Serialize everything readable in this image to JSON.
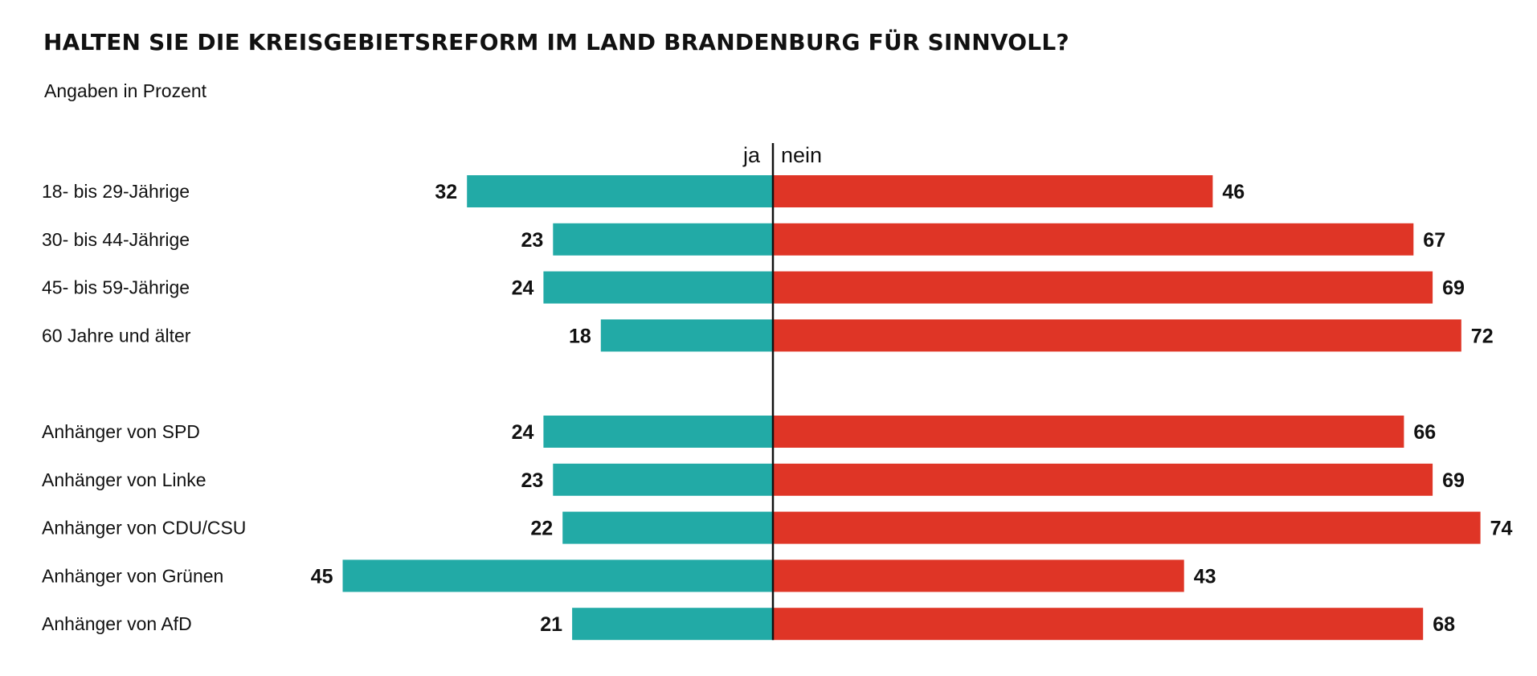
{
  "title": "HALTEN SIE DIE KREISGEBIETSREFORM IM LAND BRANDENBURG FÜR SINNVOLL?",
  "subtitle": "Angaben in Prozent",
  "chart_data": {
    "type": "bar",
    "orientation": "horizontal-diverging",
    "title": "HALTEN SIE DIE KREISGEBIETSREFORM IM LAND BRANDENBURG FÜR SINNVOLL?",
    "subtitle": "Angaben in Prozent",
    "xlabel": "",
    "ylabel": "",
    "unit": "%",
    "xlim": [
      0,
      100
    ],
    "grid": false,
    "legend": "inline above bars",
    "side_labels": {
      "left": "ja",
      "right": "nein"
    },
    "groups": [
      [
        "18- bis 29-Jährige",
        "30- bis 44-Jährige",
        "45- bis 59-Jährige",
        "60 Jahre und älter"
      ],
      [
        "Anhänger von SPD",
        "Anhänger von Linke",
        "Anhänger von CDU/CSU",
        "Anhänger von Grünen",
        "Anhänger von AfD"
      ]
    ],
    "categories": [
      "18- bis 29-Jährige",
      "30- bis 44-Jährige",
      "45- bis 59-Jährige",
      "60 Jahre und älter",
      "Anhänger von SPD",
      "Anhänger von Linke",
      "Anhänger von CDU/CSU",
      "Anhänger von Grünen",
      "Anhänger von AfD"
    ],
    "series": [
      {
        "name": "ja",
        "color": "#22aaa6",
        "values": [
          32,
          23,
          24,
          18,
          24,
          23,
          22,
          45,
          21
        ]
      },
      {
        "name": "nein",
        "color": "#df3526",
        "values": [
          46,
          67,
          69,
          72,
          66,
          69,
          74,
          43,
          68
        ]
      }
    ],
    "axis_color": "#111111"
  }
}
